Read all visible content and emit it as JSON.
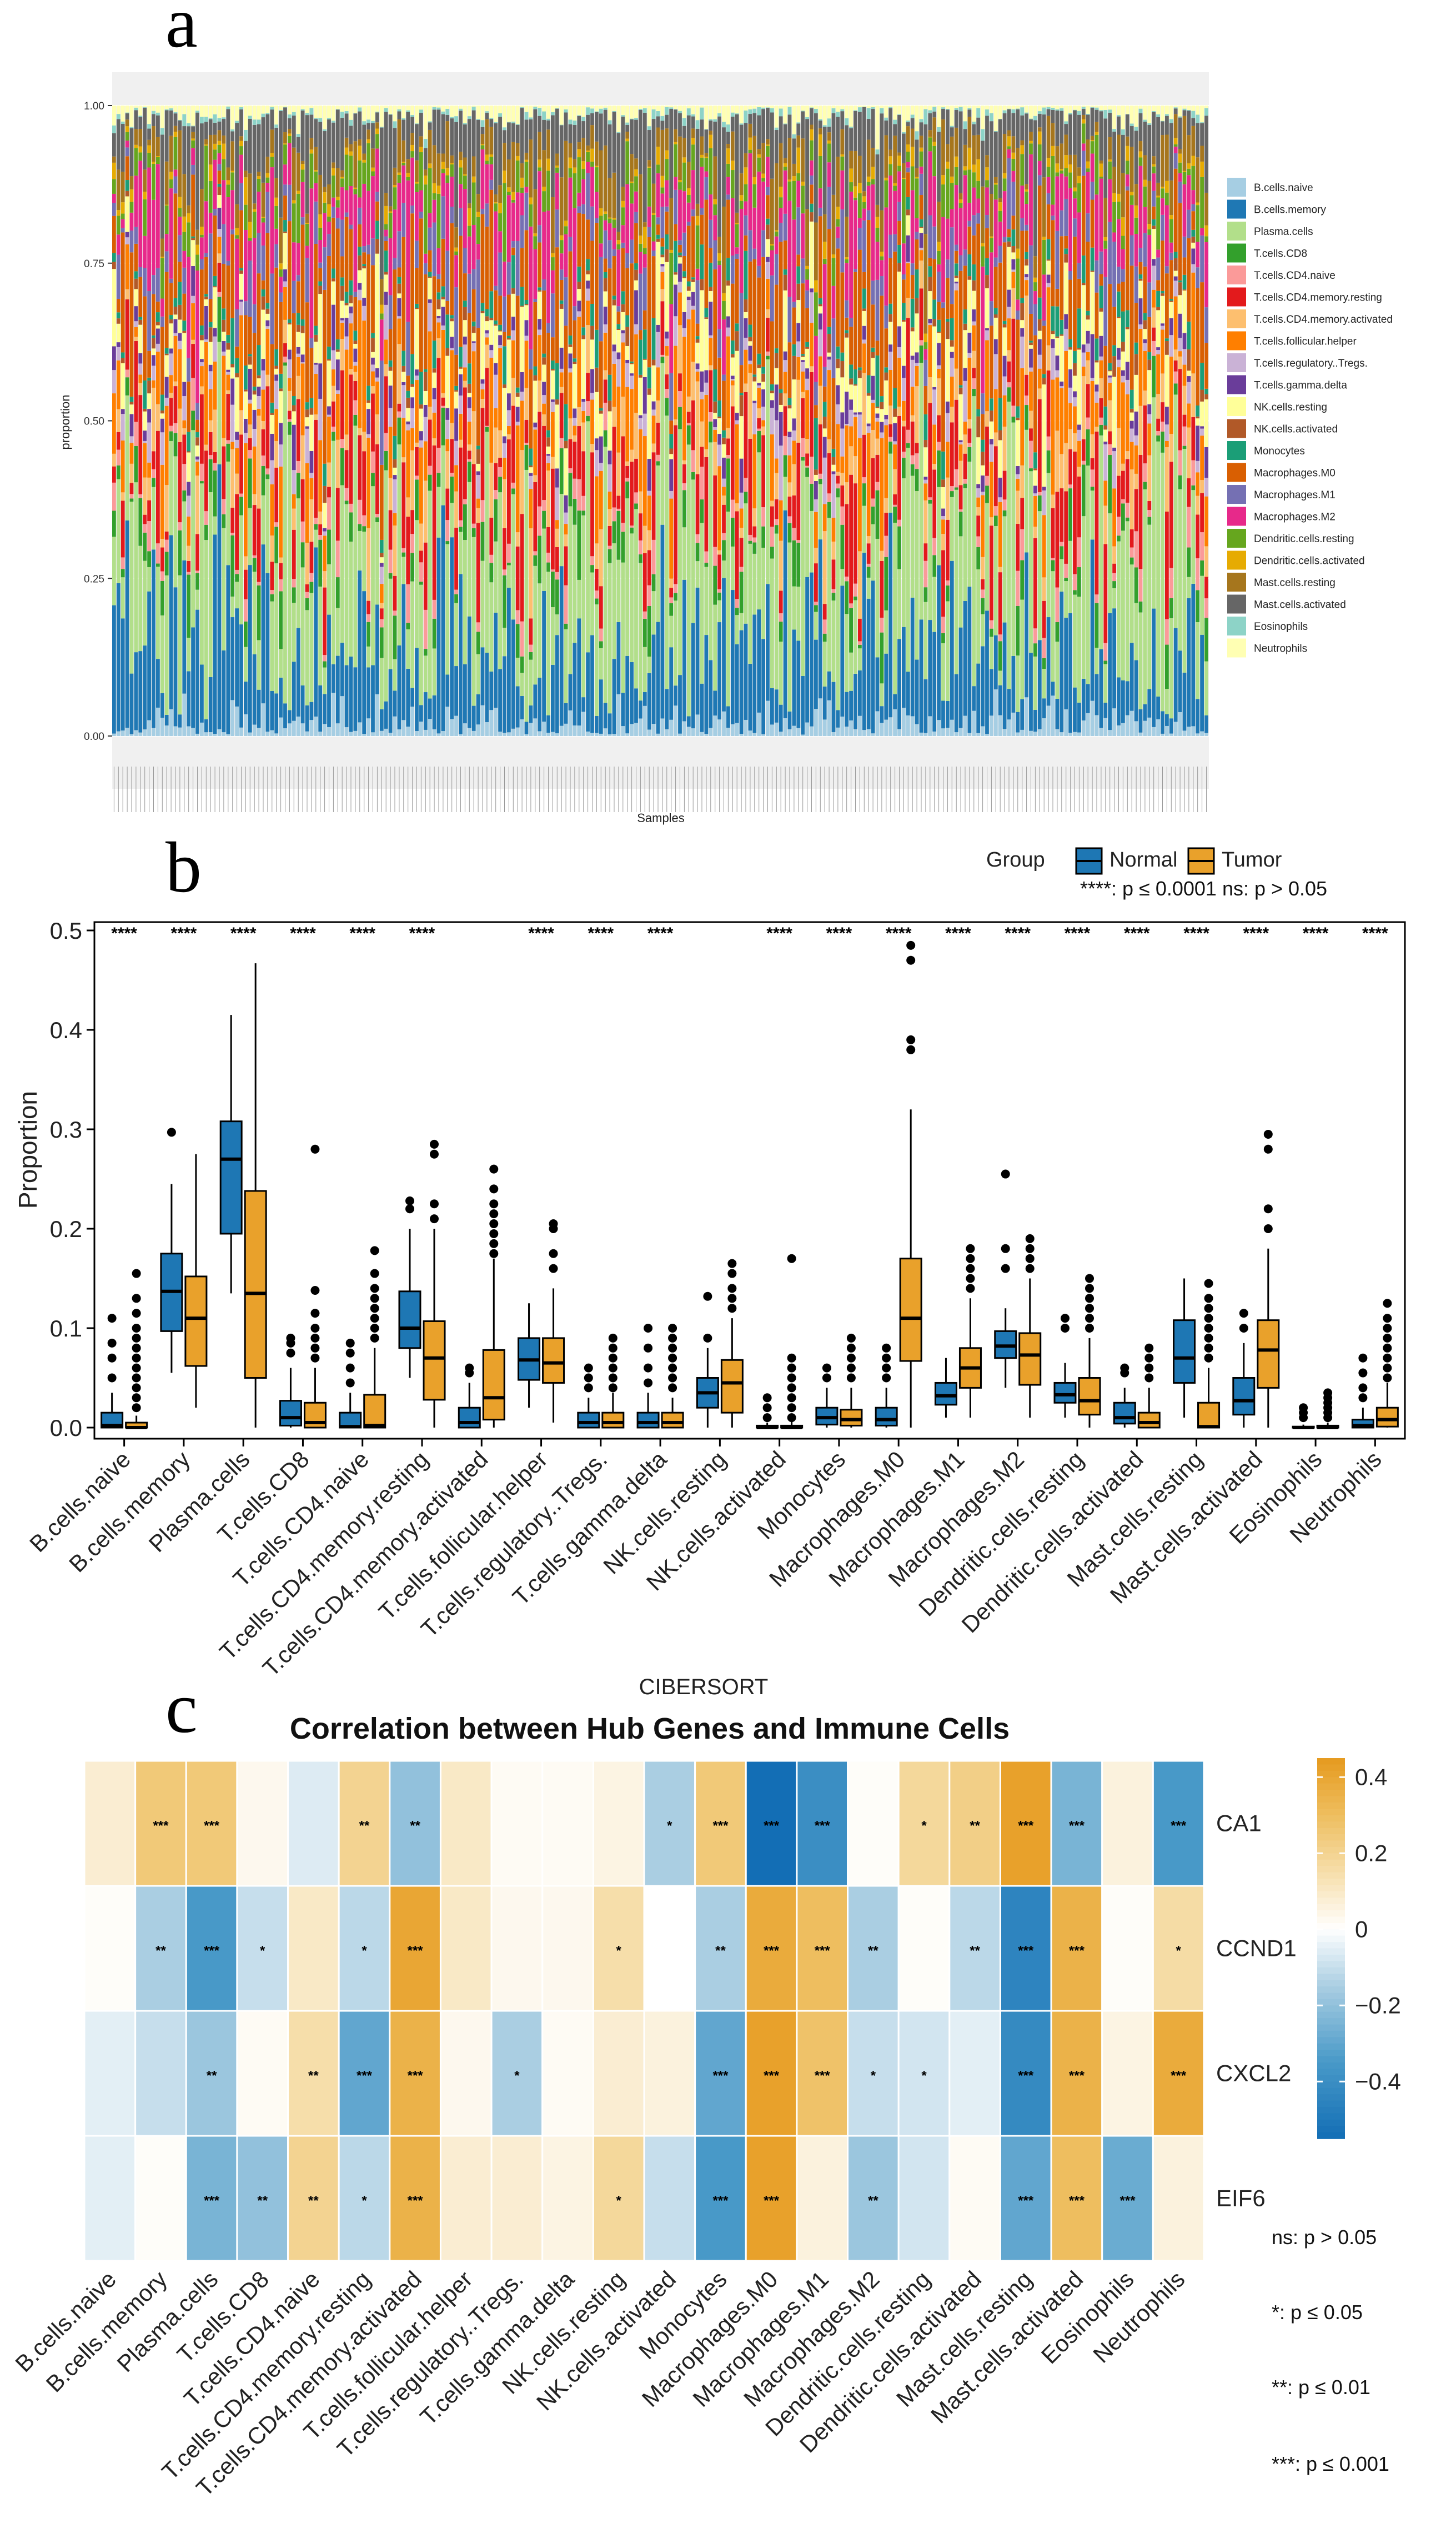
{
  "chart_data": [
    {
      "panel": "a",
      "type": "bar",
      "stacked": true,
      "xlabel": "Samples",
      "ylabel": "proportion",
      "ylim": [
        0,
        1
      ],
      "yticks": [
        "0.00",
        "0.25",
        "0.50",
        "0.75",
        "1.00"
      ],
      "n_samples": 250,
      "legend": [
        {
          "name": "B.cells.naive",
          "color": "#A6CEE3"
        },
        {
          "name": "B.cells.memory",
          "color": "#1F78B4"
        },
        {
          "name": "Plasma.cells",
          "color": "#B2DF8A"
        },
        {
          "name": "T.cells.CD8",
          "color": "#33A02C"
        },
        {
          "name": "T.cells.CD4.naive",
          "color": "#FB9A99"
        },
        {
          "name": "T.cells.CD4.memory.resting",
          "color": "#E31A1C"
        },
        {
          "name": "T.cells.CD4.memory.activated",
          "color": "#FDBF6F"
        },
        {
          "name": "T.cells.follicular.helper",
          "color": "#FF7F00"
        },
        {
          "name": "T.cells.regulatory..Tregs.",
          "color": "#CAB2D6"
        },
        {
          "name": "T.cells.gamma.delta",
          "color": "#6A3D9A"
        },
        {
          "name": "NK.cells.resting",
          "color": "#FFFF99"
        },
        {
          "name": "NK.cells.activated",
          "color": "#B15928"
        },
        {
          "name": "Monocytes",
          "color": "#1B9E77"
        },
        {
          "name": "Macrophages.M0",
          "color": "#D95F02"
        },
        {
          "name": "Macrophages.M1",
          "color": "#7570B3"
        },
        {
          "name": "Macrophages.M2",
          "color": "#E7298A"
        },
        {
          "name": "Dendritic.cells.resting",
          "color": "#66A61E"
        },
        {
          "name": "Dendritic.cells.activated",
          "color": "#E6AB02"
        },
        {
          "name": "Mast.cells.resting",
          "color": "#A6761D"
        },
        {
          "name": "Mast.cells.activated",
          "color": "#666666"
        },
        {
          "name": "Eosinophils",
          "color": "#8DD3C7"
        },
        {
          "name": "Neutrophils",
          "color": "#FFFFB3"
        }
      ],
      "mean_proportions": [
        0.02,
        0.12,
        0.17,
        0.03,
        0.02,
        0.08,
        0.04,
        0.06,
        0.02,
        0.02,
        0.04,
        0.01,
        0.02,
        0.09,
        0.04,
        0.07,
        0.03,
        0.01,
        0.04,
        0.06,
        0.005,
        0.015
      ]
    },
    {
      "panel": "b",
      "type": "boxplot",
      "ylabel": "Proportion",
      "ylim": [
        0,
        0.5
      ],
      "yticks": [
        "0.0",
        "0.1",
        "0.2",
        "0.3",
        "0.4",
        "0.5"
      ],
      "legend_title": "Group",
      "legend_note": "****: p ≤ 0.0001  ns: p > 0.05",
      "groups": [
        {
          "name": "Normal",
          "color": "#1E77B4"
        },
        {
          "name": "Tumor",
          "color": "#E9A12B"
        }
      ],
      "categories": [
        "B.cells.naive",
        "B.cells.memory",
        "Plasma.cells",
        "T.cells.CD8",
        "T.cells.CD4.naive",
        "T.cells.CD4.memory.resting",
        "T.cells.CD4.memory.activated",
        "T.cells.follicular.helper",
        "T.cells.regulatory..Tregs.",
        "T.cells.gamma.delta",
        "NK.cells.resting",
        "NK.cells.activated",
        "Monocytes",
        "Macrophages.M0",
        "Macrophages.M1",
        "Macrophages.M2",
        "Dendritic.cells.resting",
        "Dendritic.cells.activated",
        "Mast.cells.resting",
        "Mast.cells.activated",
        "Eosinophils",
        "Neutrophils"
      ],
      "significance": [
        "****",
        "****",
        "****",
        "****",
        "****",
        "****",
        "",
        "****",
        "****",
        "****",
        "",
        "****",
        "****",
        "****",
        "****",
        "****",
        "****",
        "****",
        "****",
        "****",
        "****",
        "****"
      ],
      "normal": [
        {
          "min": 0,
          "q1": 0,
          "med": 0.002,
          "q3": 0.015,
          "max": 0.035,
          "out": [
            0.05,
            0.07,
            0.085,
            0.11
          ]
        },
        {
          "min": 0.055,
          "q1": 0.097,
          "med": 0.137,
          "q3": 0.175,
          "max": 0.245,
          "out": [
            0.297
          ]
        },
        {
          "min": 0.135,
          "q1": 0.195,
          "med": 0.27,
          "q3": 0.308,
          "max": 0.415,
          "out": []
        },
        {
          "min": 0,
          "q1": 0.002,
          "med": 0.01,
          "q3": 0.027,
          "max": 0.06,
          "out": [
            0.075,
            0.085,
            0.09
          ]
        },
        {
          "min": 0,
          "q1": 0,
          "med": 0.001,
          "q3": 0.015,
          "max": 0.035,
          "out": [
            0.045,
            0.06,
            0.075,
            0.085
          ]
        },
        {
          "min": 0.05,
          "q1": 0.08,
          "med": 0.1,
          "q3": 0.137,
          "max": 0.2,
          "out": [
            0.22,
            0.228
          ]
        },
        {
          "min": 0,
          "q1": 0,
          "med": 0.005,
          "q3": 0.02,
          "max": 0.045,
          "out": [
            0.055,
            0.06
          ]
        },
        {
          "min": 0.02,
          "q1": 0.048,
          "med": 0.068,
          "q3": 0.09,
          "max": 0.125,
          "out": []
        },
        {
          "min": 0,
          "q1": 0,
          "med": 0.005,
          "q3": 0.015,
          "max": 0.03,
          "out": [
            0.04,
            0.05,
            0.06
          ]
        },
        {
          "min": 0,
          "q1": 0,
          "med": 0.005,
          "q3": 0.015,
          "max": 0.035,
          "out": [
            0.045,
            0.06,
            0.08,
            0.1
          ]
        },
        {
          "min": 0,
          "q1": 0.02,
          "med": 0.035,
          "q3": 0.05,
          "max": 0.08,
          "out": [
            0.09,
            0.132
          ]
        },
        {
          "min": 0,
          "q1": 0,
          "med": 0,
          "q3": 0.002,
          "max": 0.005,
          "out": [
            0.01,
            0.02,
            0.03
          ]
        },
        {
          "min": 0,
          "q1": 0.003,
          "med": 0.01,
          "q3": 0.02,
          "max": 0.04,
          "out": [
            0.05,
            0.06
          ]
        },
        {
          "min": 0,
          "q1": 0.002,
          "med": 0.008,
          "q3": 0.02,
          "max": 0.04,
          "out": [
            0.05,
            0.06,
            0.07,
            0.08
          ]
        },
        {
          "min": 0.01,
          "q1": 0.023,
          "med": 0.032,
          "q3": 0.045,
          "max": 0.07,
          "out": []
        },
        {
          "min": 0.04,
          "q1": 0.07,
          "med": 0.082,
          "q3": 0.097,
          "max": 0.12,
          "out": [
            0.16,
            0.18,
            0.255
          ]
        },
        {
          "min": 0.01,
          "q1": 0.025,
          "med": 0.033,
          "q3": 0.045,
          "max": 0.065,
          "out": [
            0.1,
            0.11
          ]
        },
        {
          "min": 0,
          "q1": 0.004,
          "med": 0.01,
          "q3": 0.025,
          "max": 0.04,
          "out": [
            0.055,
            0.06
          ]
        },
        {
          "min": 0.01,
          "q1": 0.045,
          "med": 0.07,
          "q3": 0.108,
          "max": 0.15,
          "out": []
        },
        {
          "min": 0,
          "q1": 0.013,
          "med": 0.027,
          "q3": 0.05,
          "max": 0.085,
          "out": [
            0.1,
            0.115
          ]
        },
        {
          "min": 0,
          "q1": 0,
          "med": 0,
          "q3": 0.001,
          "max": 0.003,
          "out": [
            0.01,
            0.015,
            0.02
          ]
        },
        {
          "min": 0,
          "q1": 0,
          "med": 0.002,
          "q3": 0.008,
          "max": 0.02,
          "out": [
            0.03,
            0.04,
            0.055,
            0.07
          ]
        }
      ],
      "tumor": [
        {
          "min": 0,
          "q1": 0,
          "med": 0,
          "q3": 0.005,
          "max": 0.012,
          "out": [
            0.02,
            0.03,
            0.04,
            0.05,
            0.06,
            0.07,
            0.08,
            0.09,
            0.1,
            0.115,
            0.13,
            0.155
          ]
        },
        {
          "min": 0.02,
          "q1": 0.062,
          "med": 0.11,
          "q3": 0.152,
          "max": 0.275,
          "out": []
        },
        {
          "min": 0,
          "q1": 0.05,
          "med": 0.135,
          "q3": 0.238,
          "max": 0.467,
          "out": []
        },
        {
          "min": 0,
          "q1": 0,
          "med": 0.005,
          "q3": 0.025,
          "max": 0.06,
          "out": [
            0.07,
            0.08,
            0.09,
            0.1,
            0.115,
            0.138,
            0.28
          ]
        },
        {
          "min": 0,
          "q1": 0,
          "med": 0.002,
          "q3": 0.033,
          "max": 0.08,
          "out": [
            0.09,
            0.1,
            0.11,
            0.12,
            0.13,
            0.14,
            0.155,
            0.178
          ]
        },
        {
          "min": 0,
          "q1": 0.028,
          "med": 0.07,
          "q3": 0.107,
          "max": 0.2,
          "out": [
            0.21,
            0.225,
            0.275,
            0.285
          ]
        },
        {
          "min": 0,
          "q1": 0.008,
          "med": 0.03,
          "q3": 0.078,
          "max": 0.17,
          "out": [
            0.175,
            0.185,
            0.195,
            0.205,
            0.215,
            0.225,
            0.24,
            0.26
          ]
        },
        {
          "min": 0.005,
          "q1": 0.045,
          "med": 0.065,
          "q3": 0.09,
          "max": 0.14,
          "out": [
            0.16,
            0.175,
            0.2,
            0.205
          ]
        },
        {
          "min": 0,
          "q1": 0,
          "med": 0.005,
          "q3": 0.015,
          "max": 0.035,
          "out": [
            0.04,
            0.05,
            0.06,
            0.07,
            0.08,
            0.09
          ]
        },
        {
          "min": 0,
          "q1": 0,
          "med": 0.005,
          "q3": 0.015,
          "max": 0.03,
          "out": [
            0.04,
            0.05,
            0.06,
            0.07,
            0.08,
            0.09,
            0.1
          ]
        },
        {
          "min": 0,
          "q1": 0.015,
          "med": 0.045,
          "q3": 0.068,
          "max": 0.11,
          "out": [
            0.12,
            0.13,
            0.14,
            0.155,
            0.165
          ]
        },
        {
          "min": 0,
          "q1": 0,
          "med": 0,
          "q3": 0.002,
          "max": 0.006,
          "out": [
            0.01,
            0.02,
            0.03,
            0.04,
            0.05,
            0.06,
            0.07,
            0.17
          ]
        },
        {
          "min": 0,
          "q1": 0.002,
          "med": 0.008,
          "q3": 0.018,
          "max": 0.04,
          "out": [
            0.05,
            0.06,
            0.07,
            0.08,
            0.09
          ]
        },
        {
          "min": 0,
          "q1": 0.067,
          "med": 0.11,
          "q3": 0.17,
          "max": 0.32,
          "out": [
            0.38,
            0.39,
            0.47,
            0.485
          ]
        },
        {
          "min": 0.01,
          "q1": 0.04,
          "med": 0.06,
          "q3": 0.08,
          "max": 0.13,
          "out": [
            0.14,
            0.15,
            0.16,
            0.17,
            0.18
          ]
        },
        {
          "min": 0.01,
          "q1": 0.043,
          "med": 0.073,
          "q3": 0.095,
          "max": 0.15,
          "out": [
            0.16,
            0.17,
            0.18,
            0.19
          ]
        },
        {
          "min": 0,
          "q1": 0.013,
          "med": 0.027,
          "q3": 0.05,
          "max": 0.09,
          "out": [
            0.1,
            0.11,
            0.12,
            0.13,
            0.14,
            0.15
          ]
        },
        {
          "min": 0,
          "q1": 0,
          "med": 0.005,
          "q3": 0.015,
          "max": 0.04,
          "out": [
            0.05,
            0.06,
            0.07,
            0.08
          ]
        },
        {
          "min": 0,
          "q1": 0,
          "med": 0.001,
          "q3": 0.025,
          "max": 0.06,
          "out": [
            0.07,
            0.08,
            0.09,
            0.1,
            0.11,
            0.12,
            0.13,
            0.145
          ]
        },
        {
          "min": 0,
          "q1": 0.04,
          "med": 0.078,
          "q3": 0.108,
          "max": 0.18,
          "out": [
            0.2,
            0.22,
            0.28,
            0.295
          ]
        },
        {
          "min": 0,
          "q1": 0,
          "med": 0,
          "q3": 0.002,
          "max": 0.005,
          "out": [
            0.01,
            0.015,
            0.02,
            0.025,
            0.03,
            0.035
          ]
        },
        {
          "min": 0,
          "q1": 0.001,
          "med": 0.008,
          "q3": 0.02,
          "max": 0.045,
          "out": [
            0.05,
            0.06,
            0.07,
            0.08,
            0.09,
            0.1,
            0.11,
            0.125
          ]
        }
      ]
    },
    {
      "panel": "c",
      "type": "heatmap",
      "subtitle": "CIBERSORT",
      "title": "Correlation between Hub Genes and Immune Cells",
      "rows": [
        "CA1",
        "CCND1",
        "CXCL2",
        "EIF6"
      ],
      "columns": [
        "B.cells.naive",
        "B.cells.memory",
        "Plasma.cells",
        "T.cells.CD8",
        "T.cells.CD4.naive",
        "T.cells.CD4.memory.resting",
        "T.cells.CD4.memory.activated",
        "T.cells.follicular.helper",
        "T.cells.regulatory..Tregs.",
        "T.cells.gamma.delta",
        "NK.cells.resting",
        "NK.cells.activated",
        "Monocytes",
        "Macrophages.M0",
        "Macrophages.M1",
        "Macrophages.M2",
        "Dendritic.cells.resting",
        "Dendritic.cells.activated",
        "Mast.cells.resting",
        "Mast.cells.activated",
        "Eosinophils",
        "Neutrophils"
      ],
      "values": [
        [
          0.08,
          0.25,
          0.25,
          0.03,
          -0.06,
          0.2,
          -0.2,
          0.1,
          0.02,
          0.02,
          0.05,
          -0.15,
          0.25,
          -0.55,
          -0.4,
          0.01,
          0.18,
          0.22,
          0.42,
          -0.25,
          0.06,
          -0.35
        ],
        [
          0.01,
          -0.15,
          -0.35,
          -0.1,
          0.1,
          -0.12,
          0.4,
          0.1,
          0.03,
          0.03,
          0.15,
          0.0,
          -0.15,
          0.38,
          0.3,
          -0.15,
          0.01,
          -0.12,
          -0.45,
          0.35,
          0.01,
          0.16
        ],
        [
          -0.05,
          -0.1,
          -0.18,
          0.02,
          0.15,
          -0.3,
          0.35,
          0.03,
          -0.15,
          0.02,
          0.08,
          0.06,
          -0.3,
          0.42,
          0.28,
          -0.1,
          -0.08,
          -0.05,
          -0.42,
          0.35,
          0.05,
          0.38
        ],
        [
          -0.05,
          0.01,
          -0.25,
          -0.2,
          0.2,
          -0.12,
          0.35,
          0.08,
          0.08,
          0.05,
          0.18,
          -0.1,
          -0.35,
          0.42,
          0.06,
          -0.18,
          -0.08,
          0.02,
          -0.3,
          0.3,
          -0.28,
          0.06
        ]
      ],
      "stars": [
        [
          "",
          "***",
          "***",
          "",
          "",
          "**",
          "**",
          "",
          "",
          "",
          "",
          "*",
          "***",
          "***",
          "***",
          "",
          "*",
          "**",
          "***",
          "***",
          "",
          "***"
        ],
        [
          "",
          "**",
          "***",
          "*",
          "",
          "*",
          "***",
          "",
          "",
          "",
          "*",
          "",
          "**",
          "***",
          "***",
          "**",
          "",
          "**",
          "***",
          "***",
          "",
          "*"
        ],
        [
          "",
          "",
          "**",
          "",
          "**",
          "***",
          "***",
          "",
          "*",
          "",
          "",
          "",
          "***",
          "***",
          "***",
          "*",
          "*",
          "",
          "***",
          "***",
          "",
          "***"
        ],
        [
          "",
          "",
          "***",
          "**",
          "**",
          "*",
          "***",
          "",
          "",
          "",
          "*",
          "",
          "***",
          "***",
          "",
          "**",
          "",
          "",
          "***",
          "***",
          "***",
          ""
        ]
      ],
      "colorbar_ticks": [
        "0.4",
        "0.2",
        "0",
        "−0.2",
        "−0.4"
      ],
      "colorbar_range": [
        -0.55,
        0.45
      ],
      "significance_legend": [
        "ns: p > 0.05",
        "*: p ≤ 0.05",
        "**: p ≤ 0.01",
        "***: p ≤ 0.001"
      ]
    }
  ],
  "panel_labels": [
    "a",
    "b",
    "c"
  ]
}
